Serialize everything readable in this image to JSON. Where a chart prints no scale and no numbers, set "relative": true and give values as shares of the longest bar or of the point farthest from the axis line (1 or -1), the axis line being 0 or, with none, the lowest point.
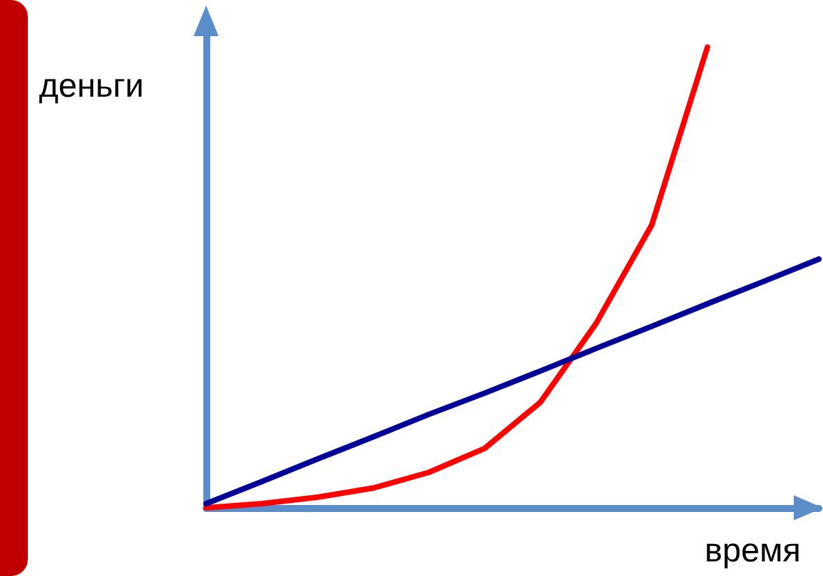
{
  "chart_data": {
    "type": "line",
    "relative": true,
    "xlabel": "время",
    "ylabel": "деньги",
    "categories": [
      null,
      null,
      null,
      null,
      null,
      null,
      null,
      null,
      null,
      null,
      null,
      null
    ],
    "series": [
      {
        "color": "#ff0000",
        "values": [
          0,
          0.009,
          0.023,
          0.043,
          0.077,
          0.129,
          0.229,
          0.4,
          0.614,
          1,
          null,
          null
        ]
      },
      {
        "color": "#000099",
        "values": [
          0.009,
          0.057,
          0.106,
          0.154,
          0.203,
          0.249,
          0.297,
          0.346,
          0.394,
          0.443,
          0.491,
          0.54
        ]
      }
    ],
    "marker": "none",
    "line_style": "solid",
    "grid": false
  }
}
